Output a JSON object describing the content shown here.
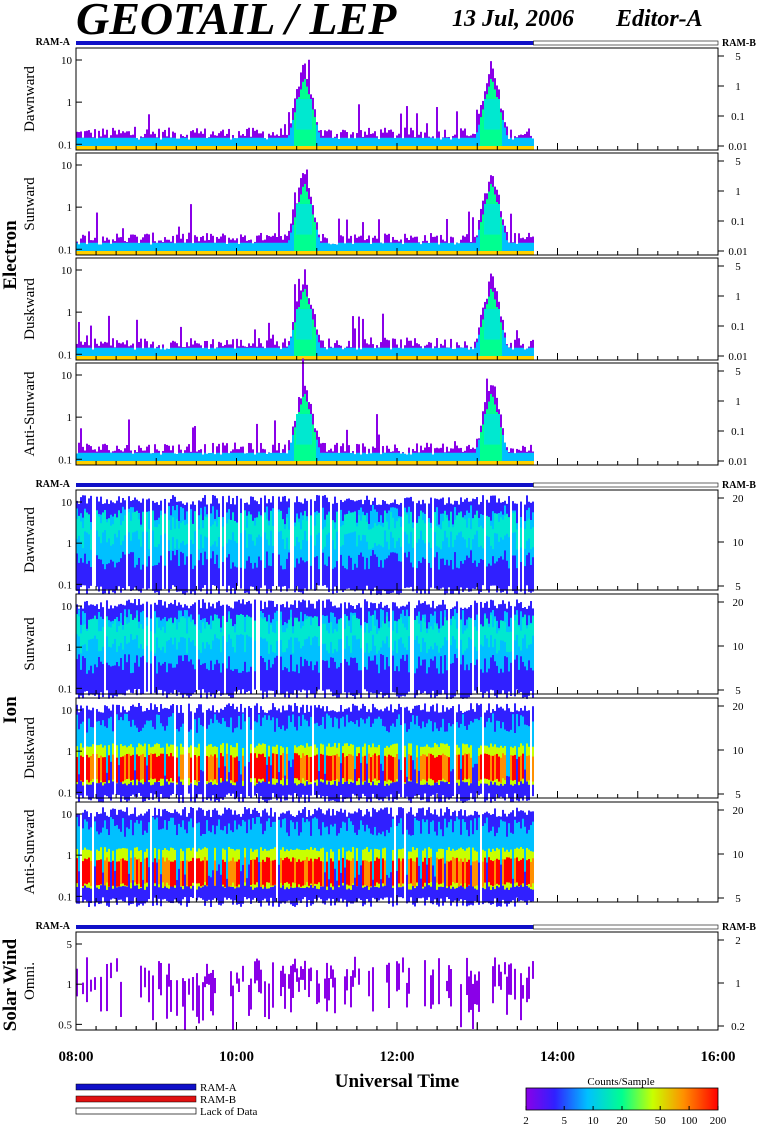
{
  "header": {
    "title": "GEOTAIL / LEP",
    "date": "13 Jul, 2006",
    "editor": "Editor-A"
  },
  "chart_data": {
    "type": "heatmap",
    "xlabel": "Universal Time",
    "x_ticks": [
      "08:00",
      "10:00",
      "12:00",
      "14:00",
      "16:00"
    ],
    "xlim": [
      "08:00",
      "16:00"
    ],
    "data_end": "13:42",
    "ram_labels": {
      "a": "RAM-A",
      "b": "RAM-B"
    },
    "groups": [
      {
        "name": "Electron",
        "panels": [
          {
            "label": "Dawnward",
            "left_ticks": [
              "10",
              "1",
              "0.1"
            ],
            "right_ticks": [
              "5",
              "1",
              "0.1",
              "0.01"
            ],
            "bursts": [
              "10:50",
              "13:10"
            ],
            "intensity": "low"
          },
          {
            "label": "Sunward",
            "left_ticks": [
              "10",
              "1",
              "0.1"
            ],
            "right_ticks": [
              "5",
              "1",
              "0.1",
              "0.01"
            ],
            "bursts": [
              "10:50",
              "13:10"
            ],
            "intensity": "low"
          },
          {
            "label": "Duskward",
            "left_ticks": [
              "10",
              "1",
              "0.1"
            ],
            "right_ticks": [
              "5",
              "1",
              "0.1",
              "0.01"
            ],
            "bursts": [
              "10:50",
              "13:10"
            ],
            "intensity": "low"
          },
          {
            "label": "Anti-Sunward",
            "left_ticks": [
              "10",
              "1",
              "0.1"
            ],
            "right_ticks": [
              "5",
              "1",
              "0.1",
              "0.01"
            ],
            "bursts": [
              "10:50",
              "13:10"
            ],
            "intensity": "low"
          }
        ]
      },
      {
        "name": "Ion",
        "panels": [
          {
            "label": "Dawnward",
            "left_ticks": [
              "10",
              "1",
              "0.1"
            ],
            "right_ticks": [
              "20",
              "10",
              "5"
            ],
            "intensity": "medium"
          },
          {
            "label": "Sunward",
            "left_ticks": [
              "10",
              "1",
              "0.1"
            ],
            "right_ticks": [
              "20",
              "10",
              "5"
            ],
            "intensity": "medium"
          },
          {
            "label": "Duskward",
            "left_ticks": [
              "10",
              "1",
              "0.1"
            ],
            "right_ticks": [
              "20",
              "10",
              "5"
            ],
            "intensity": "high"
          },
          {
            "label": "Anti-Sunward",
            "left_ticks": [
              "10",
              "1",
              "0.1"
            ],
            "right_ticks": [
              "20",
              "10",
              "5"
            ],
            "intensity": "high"
          }
        ]
      },
      {
        "name": "Solar Wind",
        "panels": [
          {
            "label": "Omni.",
            "left_ticks": [
              "5",
              "1",
              "0.5"
            ],
            "right_ticks": [
              "2",
              "1",
              "0.2"
            ],
            "intensity": "sparse"
          }
        ]
      }
    ],
    "legend": {
      "items": [
        "RAM-A",
        "RAM-B",
        "Lack of Data"
      ],
      "colors": [
        "#1010c8",
        "#e01010",
        "#ffffff"
      ]
    },
    "colorbar": {
      "title": "Counts/Sample",
      "ticks": [
        "2",
        "5",
        "10",
        "20",
        "50",
        "100",
        "200"
      ],
      "scale": "log",
      "range": [
        2,
        200
      ]
    }
  }
}
